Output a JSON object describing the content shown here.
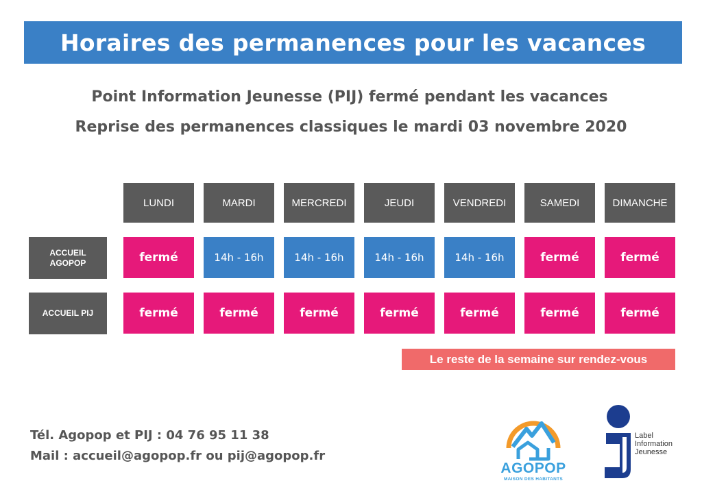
{
  "header": {
    "title": "Horaires des permanences pour les vacances",
    "subtitle_1": "Point Information Jeunesse (PIJ) fermé pendant les vacances",
    "subtitle_2": "Reprise des permanences classiques le mardi 03 novembre 2020"
  },
  "schedule": {
    "days": [
      "LUNDI",
      "MARDI",
      "MERCREDI",
      "JEUDI",
      "VENDREDI",
      "SAMEDI",
      "DIMANCHE"
    ],
    "rows": [
      {
        "label": "ACCUEIL AGOPOP",
        "cells": [
          "fermé",
          "14h - 16h",
          "14h - 16h",
          "14h - 16h",
          "14h - 16h",
          "fermé",
          "fermé"
        ]
      },
      {
        "label": "ACCUEIL PIJ",
        "cells": [
          "fermé",
          "fermé",
          "fermé",
          "fermé",
          "fermé",
          "fermé",
          "fermé"
        ]
      }
    ]
  },
  "notice": "Le reste de la semaine sur rendez-vous",
  "contact": {
    "tel": "Tél. Agopop et PIJ : 04 76 95 11 38",
    "mail": "Mail : accueil@agopop.fr ou pij@agopop.fr"
  },
  "logos": {
    "agopop_name": "AGOPOP",
    "agopop_tagline": "MAISON DES HABITANTS",
    "pij_label": "Label Information Jeunesse"
  },
  "colors": {
    "header_blue": "#3a80c6",
    "closed_pink": "#e6197a",
    "open_blue": "#3a80c6",
    "label_gray": "#5a5a5a",
    "notice_coral": "#f06a6a"
  }
}
